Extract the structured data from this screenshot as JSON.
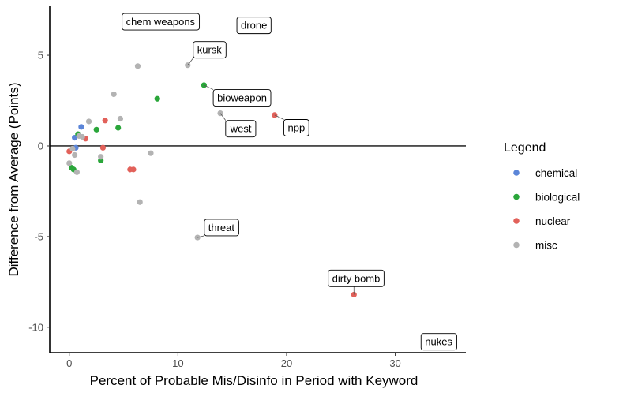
{
  "chart_data": {
    "type": "scatter",
    "xlabel": "Percent of Probable Mis/Disinfo in Period with Keyword",
    "ylabel": "Difference from Average (Points)",
    "xlim": [
      -1.8,
      36.5
    ],
    "ylim": [
      -11.4,
      7.7
    ],
    "xticks": [
      0,
      10,
      20,
      30
    ],
    "yticks": [
      -10,
      -5,
      0,
      5
    ],
    "reference_line_y": 0,
    "grid": false,
    "legend": {
      "title": "Legend",
      "position": "right",
      "entries": [
        {
          "name": "chemical",
          "color": "#5b85d8"
        },
        {
          "name": "biological",
          "color": "#2aa63a"
        },
        {
          "name": "nuclear",
          "color": "#e2615a"
        },
        {
          "name": "misc",
          "color": "#b3b3b3"
        }
      ]
    },
    "series": [
      {
        "name": "chemical",
        "color": "#5b85d8",
        "points": [
          {
            "x": 0.5,
            "y": 0.45
          },
          {
            "x": 1.1,
            "y": 1.05
          },
          {
            "x": 0.6,
            "y": -0.1
          }
        ]
      },
      {
        "name": "biological",
        "color": "#2aa63a",
        "points": [
          {
            "x": 0.8,
            "y": 0.65
          },
          {
            "x": 0.2,
            "y": -1.2
          },
          {
            "x": 0.4,
            "y": -1.3
          },
          {
            "x": 2.5,
            "y": 0.9
          },
          {
            "x": 2.9,
            "y": -0.8
          },
          {
            "x": 4.5,
            "y": 1.0
          },
          {
            "x": 8.1,
            "y": 2.6
          },
          {
            "x": 12.4,
            "y": 3.35
          }
        ]
      },
      {
        "name": "nuclear",
        "color": "#e2615a",
        "points": [
          {
            "x": 0.0,
            "y": -0.3
          },
          {
            "x": 1.5,
            "y": 0.4
          },
          {
            "x": 3.1,
            "y": -0.1
          },
          {
            "x": 3.3,
            "y": 1.4
          },
          {
            "x": 5.6,
            "y": -1.3
          },
          {
            "x": 5.9,
            "y": -1.3
          },
          {
            "x": 18.9,
            "y": 1.7
          },
          {
            "x": 26.2,
            "y": -8.2
          }
        ]
      },
      {
        "name": "misc",
        "color": "#b3b3b3",
        "points": [
          {
            "x": 0.0,
            "y": -0.95
          },
          {
            "x": 0.3,
            "y": -0.15
          },
          {
            "x": 0.5,
            "y": -0.5
          },
          {
            "x": 0.7,
            "y": -1.45
          },
          {
            "x": 0.9,
            "y": 0.55
          },
          {
            "x": 1.2,
            "y": 0.5
          },
          {
            "x": 1.8,
            "y": 1.35
          },
          {
            "x": 2.9,
            "y": -0.6
          },
          {
            "x": 4.1,
            "y": 2.85
          },
          {
            "x": 4.7,
            "y": 1.5
          },
          {
            "x": 6.3,
            "y": 4.4
          },
          {
            "x": 6.5,
            "y": -3.1
          },
          {
            "x": 7.5,
            "y": -0.4
          },
          {
            "x": 10.9,
            "y": 4.45
          },
          {
            "x": 11.8,
            "y": -5.05
          },
          {
            "x": 13.9,
            "y": 1.8
          }
        ]
      }
    ],
    "annotations": [
      {
        "text": "chem weapons",
        "box_x": 8.4,
        "box_y": 6.85,
        "anchor": "middle"
      },
      {
        "text": "drone",
        "box_x": 17.0,
        "box_y": 6.65,
        "anchor": "middle"
      },
      {
        "text": "kursk",
        "box_x": 12.9,
        "box_y": 5.3,
        "anchor": "middle",
        "point_x": 10.9,
        "point_y": 4.45
      },
      {
        "text": "bioweapon",
        "box_x": 15.9,
        "box_y": 2.65,
        "anchor": "middle",
        "point_x": 12.4,
        "point_y": 3.35
      },
      {
        "text": "west",
        "box_x": 15.8,
        "box_y": 0.95,
        "anchor": "middle",
        "point_x": 13.9,
        "point_y": 1.8
      },
      {
        "text": "npp",
        "box_x": 20.9,
        "box_y": 1.0,
        "anchor": "middle",
        "point_x": 18.9,
        "point_y": 1.7
      },
      {
        "text": "threat",
        "box_x": 14.0,
        "box_y": -4.5,
        "anchor": "middle",
        "point_x": 11.8,
        "point_y": -5.05
      },
      {
        "text": "dirty bomb",
        "box_x": 26.4,
        "box_y": -7.3,
        "anchor": "middle",
        "point_x": 26.2,
        "point_y": -8.2
      },
      {
        "text": "nukes",
        "box_x": 34.0,
        "box_y": -10.8,
        "anchor": "middle"
      }
    ]
  }
}
